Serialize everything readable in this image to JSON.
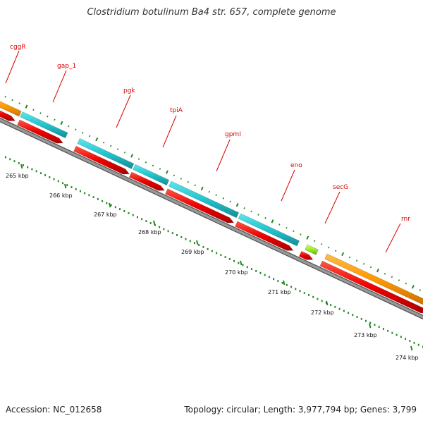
{
  "title": "Clostridium botulinum Ba4 str. 657, complete genome",
  "footer": {
    "accession": "Accession: NC_012658",
    "topology": "Topology: circular; Length: 3,977,794 bp; Genes: 3,799"
  },
  "gene_labels": [
    "cggR",
    "gap_1",
    "pgk",
    "tpiA",
    "gpmI",
    "eno",
    "secG",
    "rnr"
  ],
  "position_labels": [
    "265 kbp",
    "266 kbp",
    "267 kbp",
    "268 kbp",
    "269 kbp",
    "270 kbp",
    "271 kbp",
    "272 kbp",
    "273 kbp",
    "274 kbp"
  ],
  "colors": {
    "cds_forward": "#ee0000",
    "gene_cyan": "#22c4cc",
    "gene_orange": "#ff9900",
    "gene_green": "#99ee22",
    "backbone": "#888888",
    "tick": "#228822",
    "label": "#dd0000"
  }
}
